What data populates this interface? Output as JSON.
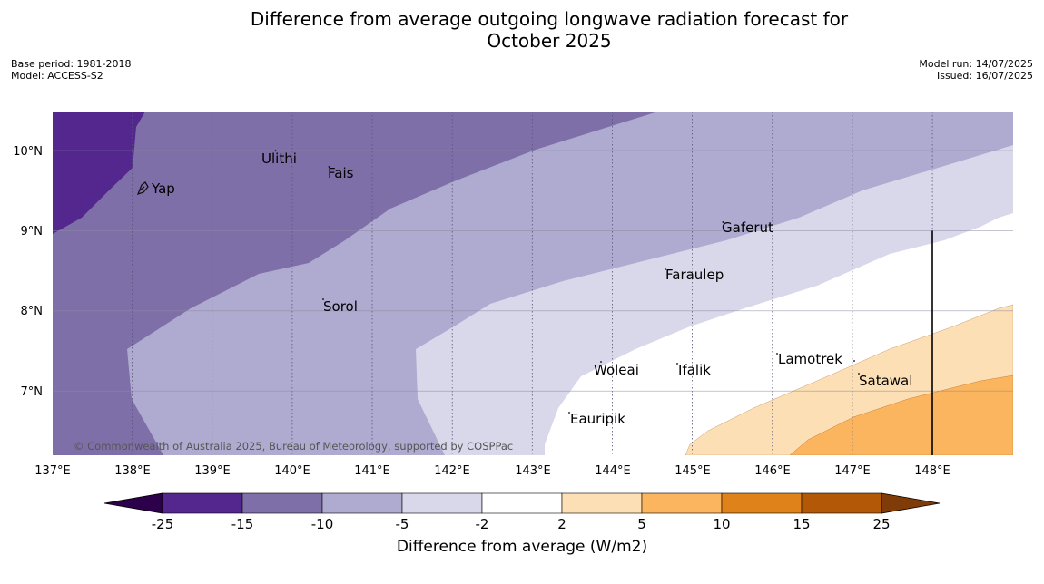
{
  "title": {
    "line1": "Difference from average outgoing longwave radiation forecast for",
    "line2": "October 2025"
  },
  "meta": {
    "base_period": "Base period: 1981-2018",
    "model": "Model: ACCESS-S2",
    "model_run": "Model run: 14/07/2025",
    "issued": "Issued: 16/07/2025"
  },
  "map": {
    "lon_labels": [
      "137°E",
      "138°E",
      "139°E",
      "140°E",
      "141°E",
      "142°E",
      "143°E",
      "144°E",
      "145°E",
      "146°E",
      "147°E",
      "148°E"
    ],
    "lat_labels": [
      "10°N",
      "9°N",
      "8°N",
      "7°N"
    ],
    "places": [
      {
        "name": "Yap",
        "lon": 138.23,
        "lat": 9.55
      },
      {
        "name": "Ulithi",
        "lon": 139.65,
        "lat": 9.9
      },
      {
        "name": "Fais",
        "lon": 140.43,
        "lat": 9.75
      },
      {
        "name": "Gaferut",
        "lon": 145.37,
        "lat": 9.07
      },
      {
        "name": "Faraulep",
        "lon": 144.65,
        "lat": 8.48
      },
      {
        "name": "Sorol",
        "lon": 140.38,
        "lat": 8.05
      },
      {
        "name": "Lamotrek",
        "lon": 146.07,
        "lat": 7.39
      },
      {
        "name": "Woleai",
        "lon": 143.9,
        "lat": 7.27
      },
      {
        "name": "Ifalik",
        "lon": 144.8,
        "lat": 7.27
      },
      {
        "name": "Satawal",
        "lon": 147.07,
        "lat": 7.13
      },
      {
        "name": "Eauripik",
        "lon": 143.45,
        "lat": 6.65
      }
    ],
    "copyright": "© Commonwealth of Australia 2025, Bureau of Meteorology, supported by COSPPac"
  },
  "colorbar": {
    "ticks": [
      "-25",
      "-15",
      "-10",
      "-5",
      "-2",
      "2",
      "5",
      "10",
      "15",
      "25"
    ],
    "colors": [
      "#54278f",
      "#7f6fa8",
      "#aeaad0",
      "#d8d8ea",
      "#ffffff",
      "#fddfb5",
      "#fbb55f",
      "#e0821a",
      "#b35806"
    ],
    "low_extend": "#2d004b",
    "high_extend": "#7f3b08",
    "label": "Difference from average (W/m2)"
  }
}
